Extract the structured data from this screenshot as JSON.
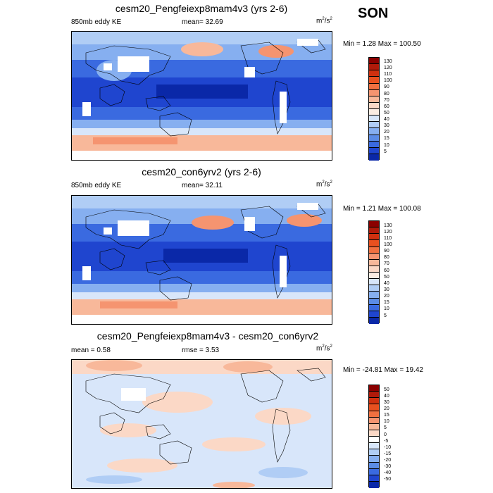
{
  "season": "SON",
  "panels": [
    {
      "title": "cesm20_Pengfeiexp8mam4v3 (yrs 2-6)",
      "left_label": "850mb eddy KE",
      "center_label": "mean=  32.69",
      "units": "m2/s2",
      "minmax": "Min =   1.28 Max = 100.50"
    },
    {
      "title": "cesm20_con6yrv2 (yrs 2-6)",
      "left_label": "850mb eddy KE",
      "center_label": "mean=  32.11",
      "units": "m2/s2",
      "minmax": "Min =   1.21 Max = 100.08"
    },
    {
      "title": "cesm20_Pengfeiexp8mam4v3 - cesm20_con6yrv2",
      "left_label": "mean =   0.58",
      "center_label": "rmse =   3.53",
      "units": "m2/s2",
      "minmax": "Min = -24.81 Max =  19.42"
    }
  ],
  "colorbars": {
    "absolute": {
      "labels": [
        "130",
        "120",
        "110",
        "100",
        "90",
        "80",
        "70",
        "60",
        "50",
        "40",
        "30",
        "20",
        "15",
        "10",
        "5"
      ],
      "colors": [
        "#8b0000",
        "#b01a0a",
        "#d0300f",
        "#e8501f",
        "#f07040",
        "#f59470",
        "#f8b89a",
        "#fbd8c6",
        "#fbece2",
        "#d8e6fa",
        "#b0cdf5",
        "#86aff0",
        "#5b8ce6",
        "#3a6ae0",
        "#1f45cf",
        "#0a28a8"
      ]
    },
    "difference": {
      "labels": [
        "50",
        "40",
        "30",
        "20",
        "15",
        "10",
        "5",
        "0",
        "-5",
        "-10",
        "-15",
        "-20",
        "-30",
        "-40",
        "-50"
      ],
      "colors": [
        "#8b0000",
        "#b01a0a",
        "#d0300f",
        "#e8501f",
        "#f07040",
        "#f59470",
        "#f8b89a",
        "#fbd8c6",
        "#ffffff",
        "#d8e6fa",
        "#b0cdf5",
        "#86aff0",
        "#5b8ce6",
        "#3a6ae0",
        "#1f45cf",
        "#0a28a8"
      ]
    }
  }
}
